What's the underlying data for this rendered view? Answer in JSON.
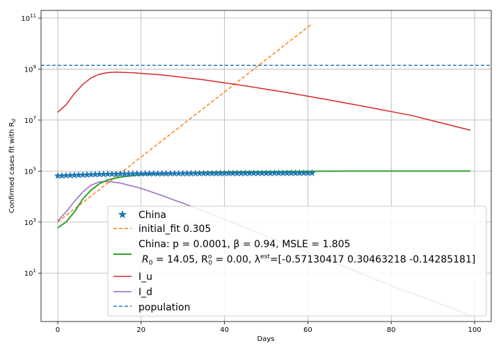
{
  "chart_data": {
    "type": "line",
    "xlabel": "Days",
    "ylabel_parts": {
      "main": "Confirmed cases fit with R",
      "sub": "d"
    },
    "x_axis": {
      "range": [
        -4,
        104
      ],
      "ticks": [
        0,
        20,
        40,
        60,
        80,
        100
      ]
    },
    "y_axis": {
      "scale": "log",
      "range_log10": [
        -0.9,
        11.3
      ],
      "ticks": [
        {
          "value": 10,
          "base": "10",
          "exp": "1"
        },
        {
          "value": 1000,
          "base": "10",
          "exp": "3"
        },
        {
          "value": 100000,
          "base": "10",
          "exp": "5"
        },
        {
          "value": 10000000,
          "base": "10",
          "exp": "7"
        },
        {
          "value": 1000000000,
          "base": "10",
          "exp": "9"
        },
        {
          "value": 100000000000,
          "base": "10",
          "exp": "11"
        }
      ]
    },
    "grid": true,
    "series": [
      {
        "key": "population",
        "kind": "hline",
        "style": "dashed",
        "color": "#1f77b4",
        "y": 1400000000
      },
      {
        "key": "initial_fit",
        "kind": "line",
        "style": "dashed",
        "color": "#ff7f0e",
        "points": [
          [
            0,
            1000
          ],
          [
            61,
            60000000000
          ]
        ]
      },
      {
        "key": "I_u",
        "kind": "line",
        "style": "solid",
        "color": "#d62728",
        "points": [
          [
            0,
            20000000
          ],
          [
            2,
            40000000
          ],
          [
            4,
            110000000
          ],
          [
            6,
            250000000
          ],
          [
            8,
            450000000
          ],
          [
            10,
            630000000
          ],
          [
            12,
            730000000
          ],
          [
            14,
            760000000
          ],
          [
            18,
            720000000
          ],
          [
            25,
            590000000
          ],
          [
            35,
            380000000
          ],
          [
            45,
            220000000
          ],
          [
            55,
            120000000
          ],
          [
            65,
            62000000
          ],
          [
            75,
            31000000
          ],
          [
            85,
            15000000
          ],
          [
            99,
            4000000
          ]
        ]
      },
      {
        "key": "I_d",
        "kind": "line",
        "style": "solid",
        "color": "#9467bd",
        "points": [
          [
            0,
            1100
          ],
          [
            2,
            2500
          ],
          [
            4,
            6500
          ],
          [
            6,
            15000
          ],
          [
            8,
            28000
          ],
          [
            10,
            38000
          ],
          [
            12,
            39000
          ],
          [
            15,
            34000
          ],
          [
            20,
            21000
          ],
          [
            25,
            11000
          ],
          [
            30,
            5500
          ],
          [
            40,
            1300
          ],
          [
            50,
            280
          ],
          [
            60,
            65
          ],
          [
            70,
            15
          ],
          [
            80,
            3.2
          ],
          [
            90,
            0.8
          ],
          [
            99,
            0.22
          ]
        ]
      },
      {
        "key": "china_fit",
        "kind": "line",
        "style": "solid",
        "color": "#2ca02c",
        "points": [
          [
            0,
            600
          ],
          [
            2,
            1000
          ],
          [
            4,
            2500
          ],
          [
            6,
            8000
          ],
          [
            8,
            18000
          ],
          [
            10,
            32000
          ],
          [
            12,
            45000
          ],
          [
            15,
            58000
          ],
          [
            20,
            72000
          ],
          [
            30,
            86000
          ],
          [
            40,
            92000
          ],
          [
            50,
            96000
          ],
          [
            60,
            98000
          ],
          [
            70,
            99500
          ],
          [
            80,
            100000
          ],
          [
            99,
            100000
          ]
        ]
      },
      {
        "key": "china",
        "kind": "markers",
        "marker": "star",
        "color": "#1f77b4",
        "points": [
          [
            0,
            65000
          ],
          [
            1,
            66000
          ],
          [
            2,
            67000
          ],
          [
            3,
            68000
          ],
          [
            4,
            69000
          ],
          [
            5,
            70000
          ],
          [
            6,
            71000
          ],
          [
            7,
            72000
          ],
          [
            8,
            73000
          ],
          [
            9,
            74000
          ],
          [
            10,
            75000
          ],
          [
            11,
            75500
          ],
          [
            12,
            76000
          ],
          [
            13,
            76500
          ],
          [
            14,
            77000
          ],
          [
            15,
            77500
          ],
          [
            16,
            78000
          ],
          [
            17,
            78200
          ],
          [
            18,
            78500
          ],
          [
            19,
            78800
          ],
          [
            20,
            79000
          ],
          [
            21,
            79200
          ],
          [
            22,
            79400
          ],
          [
            23,
            79600
          ],
          [
            24,
            79800
          ],
          [
            25,
            80000
          ],
          [
            26,
            80100
          ],
          [
            27,
            80200
          ],
          [
            28,
            80300
          ],
          [
            29,
            80400
          ],
          [
            30,
            80500
          ],
          [
            31,
            80600
          ],
          [
            32,
            80700
          ],
          [
            33,
            80800
          ],
          [
            34,
            80900
          ],
          [
            35,
            81000
          ],
          [
            36,
            81100
          ],
          [
            37,
            81200
          ],
          [
            38,
            81300
          ],
          [
            39,
            81400
          ],
          [
            40,
            81500
          ],
          [
            41,
            81600
          ],
          [
            42,
            81700
          ],
          [
            43,
            81800
          ],
          [
            44,
            81900
          ],
          [
            45,
            82000
          ],
          [
            46,
            82100
          ],
          [
            47,
            82200
          ],
          [
            48,
            82300
          ],
          [
            49,
            82400
          ],
          [
            50,
            82500
          ],
          [
            51,
            82600
          ],
          [
            52,
            82700
          ],
          [
            53,
            82800
          ],
          [
            54,
            82900
          ],
          [
            55,
            83000
          ],
          [
            56,
            83100
          ],
          [
            57,
            83200
          ],
          [
            58,
            83300
          ],
          [
            59,
            83400
          ],
          [
            60,
            83500
          ],
          [
            61,
            83600
          ]
        ]
      }
    ],
    "legend": {
      "placement": "lower-right",
      "entries": [
        {
          "key": "china",
          "text": "China"
        },
        {
          "key": "initial_fit",
          "text": "initial_fit 0.305"
        },
        {
          "key": "china_fit",
          "text": "China: p = 0.0001,  β =  0.94, MSLE = 1.805"
        },
        {
          "key": "china_fit_2",
          "parts": {
            "a": "R",
            "a_sub": "0",
            "b": " = 14.05, R",
            "b_sub": "0",
            "b_sup": "o",
            "c": " = 0.00, λ",
            "c_sup": "est",
            "d": "=[-0.57130417  0.30463218 -0.14285181]"
          }
        },
        {
          "key": "I_u",
          "text": "I_u"
        },
        {
          "key": "I_d",
          "text": "I_d"
        },
        {
          "key": "population",
          "text": "population"
        }
      ]
    }
  }
}
